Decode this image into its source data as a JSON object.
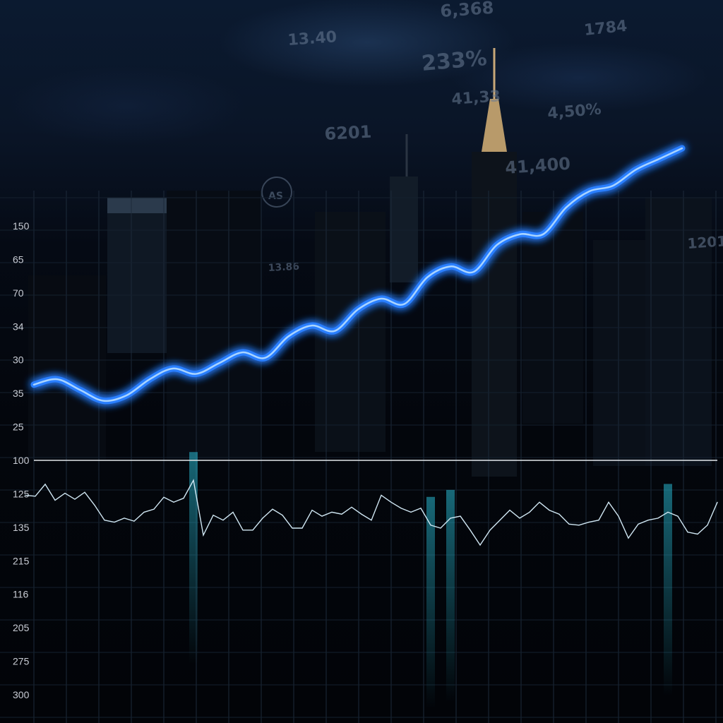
{
  "chart_data": {
    "type": "line",
    "ylabels": [
      "150",
      "65",
      "70",
      "34",
      "30",
      "35",
      "25",
      "100",
      "125",
      "135",
      "215",
      "116",
      "205",
      "275",
      "300"
    ],
    "series": [
      {
        "style": "glow",
        "x": [
          0,
          1,
          2,
          3,
          4,
          5,
          6,
          7,
          8,
          9,
          10,
          11,
          12,
          13,
          14,
          15,
          16,
          17,
          18,
          19,
          20,
          21,
          22,
          23,
          24,
          25,
          26,
          27,
          28
        ],
        "values": [
          35,
          36,
          34,
          32,
          33,
          36,
          38,
          37,
          39,
          41,
          40,
          44,
          46,
          45,
          49,
          51,
          50,
          55,
          57,
          56,
          61,
          63,
          63,
          68,
          71,
          72,
          75,
          77,
          79
        ]
      },
      {
        "style": "thin",
        "x": [
          0,
          1,
          2,
          3,
          4,
          5,
          6,
          7,
          8,
          9,
          10,
          11,
          12,
          13,
          14,
          15,
          16,
          17,
          18,
          19,
          20,
          21,
          22,
          23,
          24,
          25,
          26,
          27,
          28,
          29,
          30,
          31,
          32,
          33,
          34,
          35,
          36,
          37,
          38,
          39,
          40,
          41,
          42,
          43,
          44,
          45,
          46,
          47,
          48,
          49,
          50,
          51,
          52,
          53,
          54,
          55,
          56,
          57,
          58,
          59,
          60,
          61,
          62,
          63,
          64,
          65,
          66,
          67,
          68,
          69,
          70
        ],
        "values": [
          135,
          136,
          124,
          140,
          133,
          139,
          132,
          145,
          160,
          162,
          158,
          161,
          152,
          149,
          137,
          142,
          138,
          120,
          175,
          155,
          160,
          152,
          170,
          170,
          158,
          149,
          155,
          168,
          168,
          150,
          156,
          152,
          154,
          147,
          154,
          160,
          135,
          142,
          148,
          152,
          148,
          165,
          168,
          158,
          156,
          170,
          185,
          170,
          160,
          150,
          158,
          152,
          142,
          150,
          154,
          164,
          165,
          162,
          160,
          142,
          156,
          178,
          164,
          160,
          158,
          152,
          156,
          172,
          174,
          165,
          142
        ]
      }
    ],
    "baseline": 100,
    "colors": {
      "glow": "#2a7fff",
      "glow_core": "#a9d4ff",
      "thin": "#cfe6f2",
      "baseline": "#e2e6ea"
    }
  },
  "overlay_numbers": [
    "6,368",
    "1784",
    "13.40",
    "233%",
    "41,33",
    "4,50%",
    "6201",
    "41,400",
    "AS",
    "1201",
    "13.86"
  ]
}
